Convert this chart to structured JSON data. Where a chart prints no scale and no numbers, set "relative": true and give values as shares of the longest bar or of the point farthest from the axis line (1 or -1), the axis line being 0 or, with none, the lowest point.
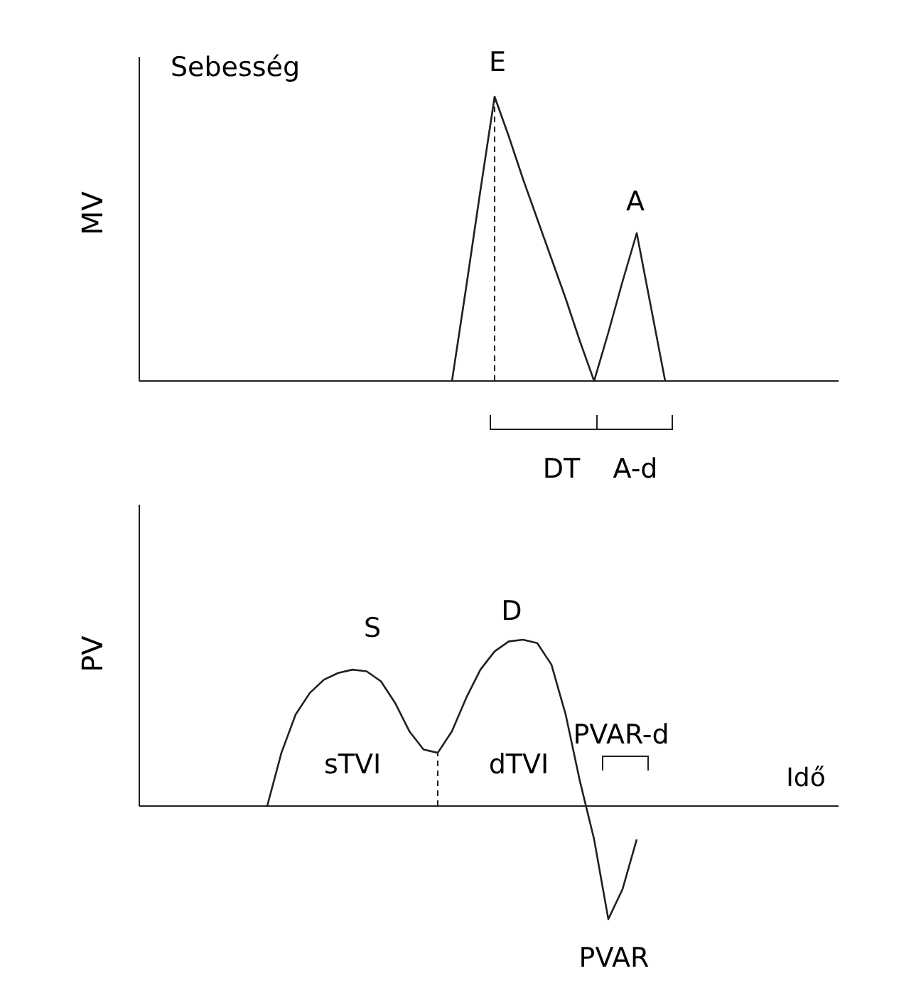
{
  "chart_data": [
    {
      "type": "line",
      "title": "Sebesség",
      "ylabel": "MV",
      "relative": true,
      "color": "#231f20",
      "categories": [
        null,
        null,
        null,
        null,
        null,
        null,
        null,
        null,
        null,
        null,
        null,
        null,
        null,
        null,
        null,
        null,
        null,
        null,
        null,
        null,
        null,
        null,
        null,
        null,
        null,
        null,
        null,
        null,
        null,
        null,
        null,
        null,
        null,
        null,
        null,
        null,
        null,
        null,
        null,
        null,
        null,
        null,
        null,
        null,
        null,
        null,
        null,
        null,
        null,
        null
      ],
      "values": [
        null,
        null,
        null,
        null,
        null,
        null,
        null,
        null,
        null,
        null,
        null,
        null,
        null,
        null,
        null,
        null,
        null,
        null,
        null,
        null,
        null,
        null,
        0,
        0.33,
        0.67,
        1,
        0.86,
        0.71,
        0.57,
        0.43,
        0.29,
        0.14,
        0,
        0.17,
        0.35,
        0.52,
        0.26,
        0,
        null,
        null,
        null,
        null,
        null,
        null,
        null,
        null,
        null,
        null,
        null,
        null
      ],
      "annotations": [
        "E",
        "A",
        "DT",
        "A-d"
      ]
    },
    {
      "type": "line",
      "ylabel": "PV",
      "xlabel": "Idő",
      "relative": true,
      "color": "#231f20",
      "categories": [
        null,
        null,
        null,
        null,
        null,
        null,
        null,
        null,
        null,
        null,
        null,
        null,
        null,
        null,
        null,
        null,
        null,
        null,
        null,
        null,
        null,
        null,
        null,
        null,
        null,
        null,
        null,
        null,
        null,
        null,
        null,
        null,
        null,
        null,
        null,
        null,
        null,
        null,
        null,
        null,
        null,
        null,
        null,
        null,
        null,
        null,
        null,
        null,
        null,
        null
      ],
      "values": [
        null,
        null,
        null,
        null,
        null,
        null,
        null,
        null,
        null,
        0,
        0.32,
        0.55,
        0.68,
        0.76,
        0.8,
        0.82,
        0.81,
        0.75,
        0.62,
        0.45,
        0.34,
        0.32,
        0.45,
        0.65,
        0.82,
        0.93,
        0.99,
        1,
        0.98,
        0.85,
        0.55,
        0.15,
        -0.2,
        -0.68,
        -0.5,
        -0.2,
        null,
        null,
        null,
        null,
        null,
        null,
        null,
        null,
        null,
        null,
        null,
        null,
        null,
        null
      ],
      "annotations": [
        "S",
        "D",
        "sTVI",
        "dTVI",
        "PVAR-d",
        "PVAR"
      ]
    }
  ]
}
